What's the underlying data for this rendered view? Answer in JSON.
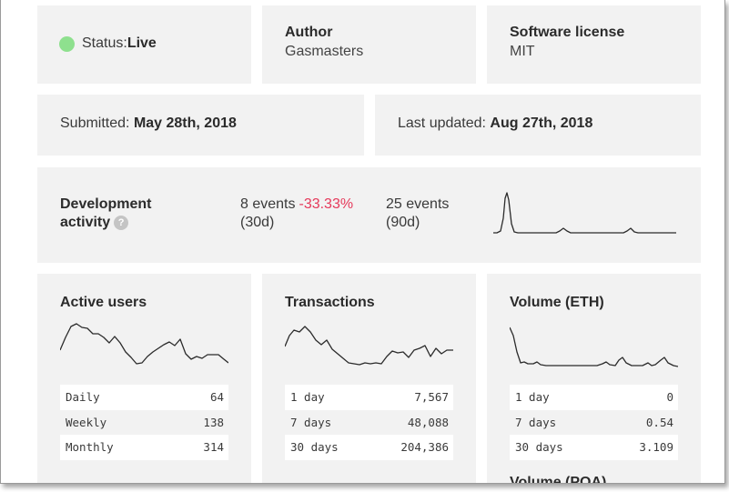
{
  "colors": {
    "status_live": "#8ee08e",
    "negative": "#e5395a",
    "card_bg": "#f2f2f2"
  },
  "status": {
    "label": "Status: ",
    "value": "Live"
  },
  "author": {
    "title": "Author",
    "value": "Gasmasters"
  },
  "license": {
    "title": "Software license",
    "value": "MIT"
  },
  "submitted": {
    "label": "Submitted: ",
    "value": "May 28th, 2018"
  },
  "updated": {
    "label": "Last updated: ",
    "value": "Aug 27th, 2018"
  },
  "development": {
    "title_line1": "Development",
    "title_line2": "activity",
    "help_icon": "?",
    "events_30d": "8 events",
    "change_30d": "-33.33%",
    "period_30d": "(30d)",
    "events_90d": "25 events",
    "period_90d": "(90d)"
  },
  "active_users": {
    "title": "Active users",
    "rows": [
      {
        "label": "Daily",
        "value": "64"
      },
      {
        "label": "Weekly",
        "value": "138"
      },
      {
        "label": "Monthly",
        "value": "314"
      }
    ]
  },
  "transactions": {
    "title": "Transactions",
    "rows": [
      {
        "label": "1 day",
        "value": "7,567"
      },
      {
        "label": "7 days",
        "value": "48,088"
      },
      {
        "label": "30 days",
        "value": "204,386"
      }
    ]
  },
  "volume_eth": {
    "title": "Volume (ETH)",
    "rows": [
      {
        "label": "1 day",
        "value": "0"
      },
      {
        "label": "7 days",
        "value": "0.54"
      },
      {
        "label": "30 days",
        "value": "3.109"
      }
    ]
  },
  "volume_poa": {
    "title": "Volume (POA)"
  }
}
